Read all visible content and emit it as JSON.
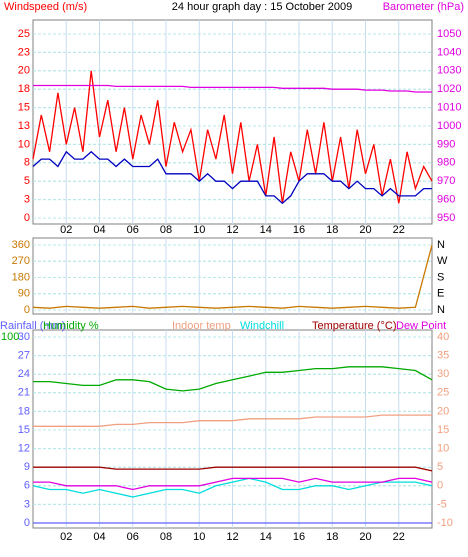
{
  "chart_data": [
    {
      "type": "line",
      "title": "24 hour graph day : 15 October 2009",
      "xlim": [
        0,
        24
      ],
      "xticks": [
        {
          "value": 2,
          "label": "02"
        },
        {
          "value": 4,
          "label": "04"
        },
        {
          "value": 6,
          "label": "06"
        },
        {
          "value": 8,
          "label": "08"
        },
        10,
        12,
        14,
        16,
        18,
        20,
        22
      ],
      "ylim": [
        0,
        25
      ],
      "yticks": [
        0,
        {
          "value": 2.5,
          "label": "3"
        },
        5,
        {
          "value": 7.5,
          "label": "8"
        },
        10,
        {
          "value": 12.5,
          "label": "13"
        },
        15,
        {
          "value": 17.5,
          "label": "18"
        },
        20,
        {
          "value": 22.5,
          "label": "23"
        },
        25
      ],
      "y2lim": [
        950,
        1050
      ],
      "y2ticks": [
        950,
        960,
        970,
        980,
        990,
        1000,
        1010,
        1020,
        1030,
        1040,
        1050
      ],
      "grid": true,
      "x": [
        0,
        0.5,
        1,
        1.5,
        2,
        2.5,
        3,
        3.5,
        4,
        4.5,
        5,
        5.5,
        6,
        6.5,
        7,
        7.5,
        8,
        8.5,
        9,
        9.5,
        10,
        10.5,
        11,
        11.5,
        12,
        12.5,
        13,
        13.5,
        14,
        14.5,
        15,
        15.5,
        16,
        16.5,
        17,
        17.5,
        18,
        18.5,
        19,
        19.5,
        20,
        20.5,
        21,
        21.5,
        22,
        22.5,
        23,
        23.5,
        24
      ],
      "series": [
        {
          "name": "Windspeed (m/s)",
          "color": "#ff0000",
          "axis": "y",
          "values": [
            8,
            14,
            9,
            17,
            10,
            15,
            9,
            20,
            11,
            16,
            9,
            15,
            8,
            14,
            10,
            16,
            7,
            13,
            9,
            12,
            5,
            12,
            8,
            14,
            6,
            13,
            5,
            10,
            3,
            11,
            2,
            9,
            5,
            12,
            6,
            13,
            5,
            11,
            4,
            12,
            6,
            10,
            3,
            8,
            2,
            9,
            4,
            7,
            5
          ]
        },
        {
          "color": "#0000c0",
          "axis": "y",
          "values": [
            7,
            8,
            8,
            7,
            9,
            8,
            8,
            9,
            8,
            8,
            7,
            8,
            7,
            7,
            7,
            8,
            6,
            6,
            6,
            6,
            5,
            6,
            5,
            5,
            4,
            5,
            5,
            5,
            3,
            3,
            2,
            3,
            5,
            6,
            6,
            6,
            5,
            5,
            4,
            5,
            4,
            4,
            3,
            4,
            3,
            3,
            3,
            4,
            4
          ]
        },
        {
          "name": "Barometer (hPa)",
          "color": "#e000e0",
          "axis": "y2",
          "values": [
            1022,
            1022,
            1022,
            1022,
            1022,
            1022,
            1022,
            1022,
            1022,
            1022,
            1021.5,
            1021.5,
            1021.5,
            1021.5,
            1021.5,
            1021.5,
            1021.5,
            1021.5,
            1021.5,
            1021,
            1021,
            1021,
            1021,
            1021,
            1021,
            1021,
            1021,
            1021,
            1021,
            1021,
            1020.5,
            1020.5,
            1020.5,
            1020.5,
            1020.5,
            1020.5,
            1020,
            1020,
            1020,
            1020,
            1019.5,
            1019.5,
            1019.5,
            1019,
            1019,
            1019,
            1018.5,
            1018.5,
            1018.5
          ]
        }
      ]
    },
    {
      "type": "line",
      "xlim": [
        0,
        24
      ],
      "ylim": [
        0,
        360
      ],
      "yticks": [
        0,
        90,
        180,
        270,
        360
      ],
      "y2lim": [
        0,
        360
      ],
      "y2ticks": [
        {
          "value": 0,
          "label": "N"
        },
        {
          "value": 90,
          "label": "E"
        },
        {
          "value": 180,
          "label": "S"
        },
        {
          "value": 270,
          "label": "W"
        },
        {
          "value": 360,
          "label": "N"
        }
      ],
      "grid": true,
      "x": [
        0,
        1,
        2,
        3,
        4,
        5,
        6,
        7,
        8,
        9,
        10,
        11,
        12,
        13,
        14,
        15,
        16,
        17,
        18,
        19,
        20,
        21,
        22,
        23,
        24
      ],
      "series": [
        {
          "color": "#c87800",
          "axis": "y",
          "values": [
            15,
            10,
            20,
            15,
            10,
            15,
            20,
            10,
            15,
            20,
            15,
            10,
            15,
            20,
            15,
            10,
            20,
            15,
            10,
            15,
            20,
            15,
            10,
            15,
            360
          ]
        }
      ]
    },
    {
      "type": "line",
      "xlim": [
        0,
        24
      ],
      "xticks": [
        {
          "value": 2,
          "label": "02"
        },
        {
          "value": 4,
          "label": "04"
        },
        {
          "value": 6,
          "label": "06"
        },
        {
          "value": 8,
          "label": "08"
        },
        10,
        12,
        14,
        16,
        18,
        20,
        22
      ],
      "ylim": [
        0,
        30
      ],
      "yticks": [
        0,
        3,
        6,
        9,
        12,
        15,
        18,
        21,
        24,
        27,
        30
      ],
      "y2lim": [
        -10,
        40
      ],
      "y2ticks": [
        -10,
        -5,
        0,
        5,
        10,
        15,
        20,
        25,
        30,
        35,
        40
      ],
      "y3lim": [
        0,
        100
      ],
      "y3ticks": [
        100
      ],
      "grid": true,
      "x": [
        0,
        1,
        2,
        3,
        4,
        5,
        6,
        7,
        8,
        9,
        10,
        11,
        12,
        13,
        14,
        15,
        16,
        17,
        18,
        19,
        20,
        21,
        22,
        23,
        24
      ],
      "series": [
        {
          "name": "Rainfall (mm)",
          "color": "#6060ff",
          "axis": "y",
          "values": [
            0,
            0,
            0,
            0,
            0,
            0,
            0,
            0,
            0,
            0,
            0,
            0,
            0,
            0,
            0,
            0,
            0,
            0,
            0,
            0,
            0,
            0,
            0,
            0,
            0
          ]
        },
        {
          "name": "Humidity %",
          "color": "#00aa00",
          "axis": "y3",
          "values": [
            76,
            76,
            75,
            74,
            74,
            77,
            77,
            76,
            72,
            71,
            72,
            75,
            77,
            79,
            81,
            81,
            82,
            83,
            83,
            84,
            84,
            84,
            83,
            82,
            77
          ]
        },
        {
          "name": "Indoor temp",
          "color": "#f0a080",
          "axis": "y2",
          "values": [
            16,
            16,
            16,
            16,
            16,
            16.5,
            16.5,
            17,
            17,
            17,
            17.5,
            17.5,
            17.5,
            18,
            18,
            18,
            18,
            18.5,
            18.5,
            18.5,
            18.5,
            19,
            19,
            19,
            19
          ]
        },
        {
          "name": "Windchill",
          "color": "#00dddd",
          "axis": "y2",
          "values": [
            0,
            -1,
            -1,
            -2,
            -1,
            -2,
            -3,
            -2,
            -1,
            -1,
            -2,
            0,
            1,
            2,
            1,
            -1,
            -1,
            0,
            0,
            -1,
            0,
            1,
            1,
            1,
            0
          ]
        },
        {
          "name": "Temperature (°C)",
          "color": "#a00000",
          "axis": "y2",
          "values": [
            5,
            5,
            5,
            5,
            5,
            4.5,
            4.5,
            4.5,
            4.5,
            4.5,
            4.5,
            5,
            5,
            5,
            5,
            5,
            5,
            5,
            5,
            5,
            5,
            5,
            5,
            5,
            4
          ]
        },
        {
          "name": "Dew Point",
          "color": "#e000e0",
          "axis": "y2",
          "values": [
            1,
            1,
            0,
            0,
            0,
            0,
            -1,
            0,
            0,
            0,
            0,
            1,
            2,
            2,
            2,
            2,
            1,
            2,
            1,
            1,
            1,
            1,
            2,
            2,
            1
          ]
        }
      ]
    }
  ]
}
